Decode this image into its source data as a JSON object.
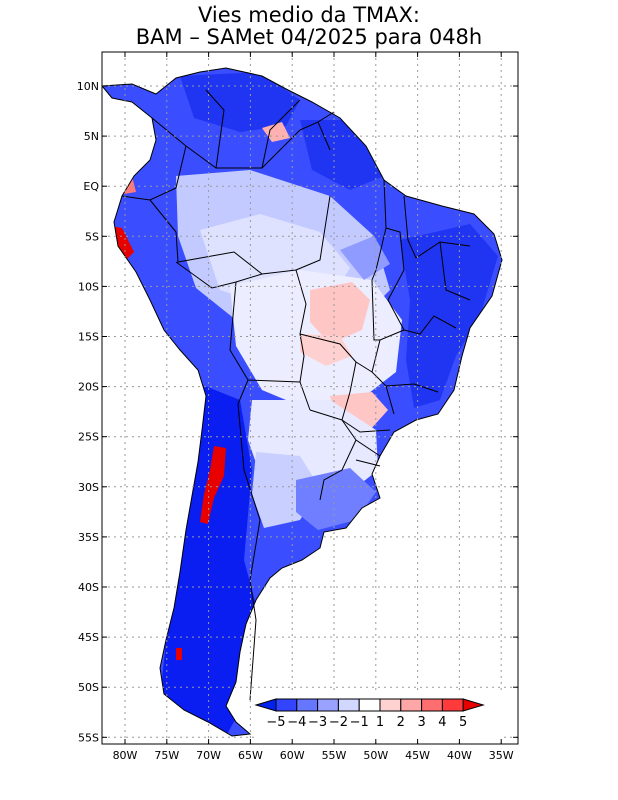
{
  "title": {
    "line1": "Vies medio da TMAX:",
    "line2": "BAM – SAMet 04/2025  para 048h"
  },
  "axes": {
    "lat_labels": [
      "10N",
      "5N",
      "EQ",
      "5S",
      "10S",
      "15S",
      "20S",
      "25S",
      "30S",
      "35S",
      "40S",
      "45S",
      "50S",
      "55S"
    ],
    "lon_labels": [
      "80W",
      "75W",
      "70W",
      "65W",
      "60W",
      "55W",
      "50W",
      "45W",
      "40W",
      "35W"
    ]
  },
  "colorbar": {
    "labels": [
      "−5",
      "−4",
      "−3",
      "−2",
      "−1",
      "1",
      "2",
      "3",
      "4",
      "5"
    ],
    "colors": [
      "#0022ee",
      "#3344ff",
      "#6677ff",
      "#99a3ff",
      "#d2d7ff",
      "#ffffff",
      "#ffd2d2",
      "#ffa6a6",
      "#ff6e6e",
      "#ff3a3a",
      "#e80000"
    ]
  },
  "colors": {
    "strong_blue": "#0a22ee",
    "mid_blue": "#4a5cff",
    "light_blue": "#aab4ff",
    "pale_blue": "#d9ddff",
    "white": "#f6f7ff",
    "pink": "#ffc8c8",
    "red": "#e80000",
    "grid": "#9a9a9a"
  }
}
